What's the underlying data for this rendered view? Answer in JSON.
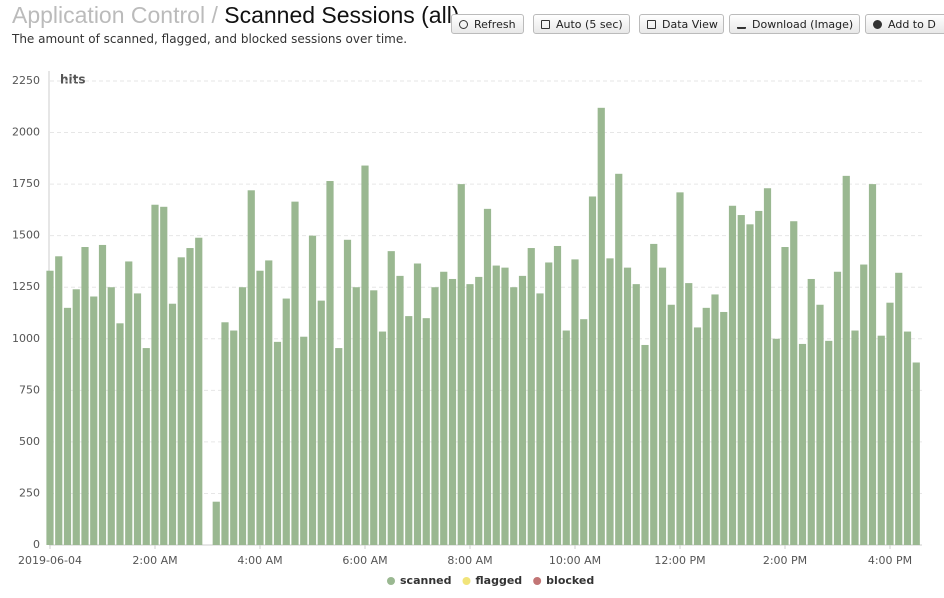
{
  "header": {
    "section": "Application Control",
    "separator": "/",
    "title": "Scanned Sessions (all)",
    "subtitle": "The amount of scanned, flagged, and blocked sessions over time."
  },
  "toolbar": [
    "Refresh",
    "Auto (5 sec)",
    "Data View",
    "Download (Image)",
    "Add to D"
  ],
  "chart_data": {
    "type": "bar",
    "y_label": "hits",
    "categories": [
      "2019-06-04",
      null,
      null,
      null,
      null,
      null,
      null,
      null,
      null,
      null,
      null,
      null,
      "2:00 AM",
      null,
      null,
      null,
      null,
      null,
      null,
      null,
      null,
      null,
      null,
      null,
      "4:00 AM",
      null,
      null,
      null,
      null,
      null,
      null,
      null,
      null,
      null,
      null,
      null,
      "6:00 AM",
      null,
      null,
      null,
      null,
      null,
      null,
      null,
      null,
      null,
      null,
      null,
      "8:00 AM",
      null,
      null,
      null,
      null,
      null,
      null,
      null,
      null,
      null,
      null,
      null,
      "10:00 AM",
      null,
      null,
      null,
      null,
      null,
      null,
      null,
      null,
      null,
      null,
      null,
      "12:00 PM",
      null,
      null,
      null,
      null,
      null,
      null,
      null,
      null,
      null,
      null,
      null,
      "2:00 PM",
      null,
      null,
      null,
      null,
      null,
      null,
      null,
      null,
      null,
      null,
      null,
      "4:00 PM",
      null,
      null,
      null
    ],
    "series": [
      {
        "name": "scanned",
        "color": "#9ab891",
        "values": [
          1330,
          1400,
          1150,
          1240,
          1445,
          1205,
          1455,
          1250,
          1075,
          1375,
          1220,
          955,
          1650,
          1640,
          1170,
          1395,
          1440,
          1490,
          null,
          210,
          1080,
          1040,
          1250,
          1720,
          1330,
          1380,
          985,
          1195,
          1665,
          1010,
          1500,
          1185,
          1765,
          955,
          1480,
          1250,
          1840,
          1235,
          1035,
          1425,
          1305,
          1110,
          1365,
          1100,
          1250,
          1325,
          1290,
          1750,
          1265,
          1300,
          1630,
          1355,
          1345,
          1250,
          1305,
          1440,
          1220,
          1370,
          1450,
          1040,
          1385,
          1095,
          1690,
          2120,
          1390,
          1800,
          1345,
          1265,
          970,
          1460,
          1345,
          1165,
          1710,
          1270,
          1055,
          1150,
          1215,
          1130,
          1645,
          1600,
          1555,
          1620,
          1730,
          1000,
          1445,
          1570,
          975,
          1290,
          1165,
          990,
          1325,
          1790,
          1040,
          1360,
          1750,
          1015,
          1175,
          1320,
          1035,
          885
        ]
      }
    ],
    "legend_extra": [
      {
        "name": "flagged",
        "color": "#f1e47a"
      },
      {
        "name": "blocked",
        "color": "#c27575"
      }
    ],
    "ylim": [
      0,
      2250
    ],
    "yticks": [
      0,
      250,
      500,
      750,
      1000,
      1250,
      1500,
      1750,
      2000,
      2250
    ],
    "grid": true
  }
}
